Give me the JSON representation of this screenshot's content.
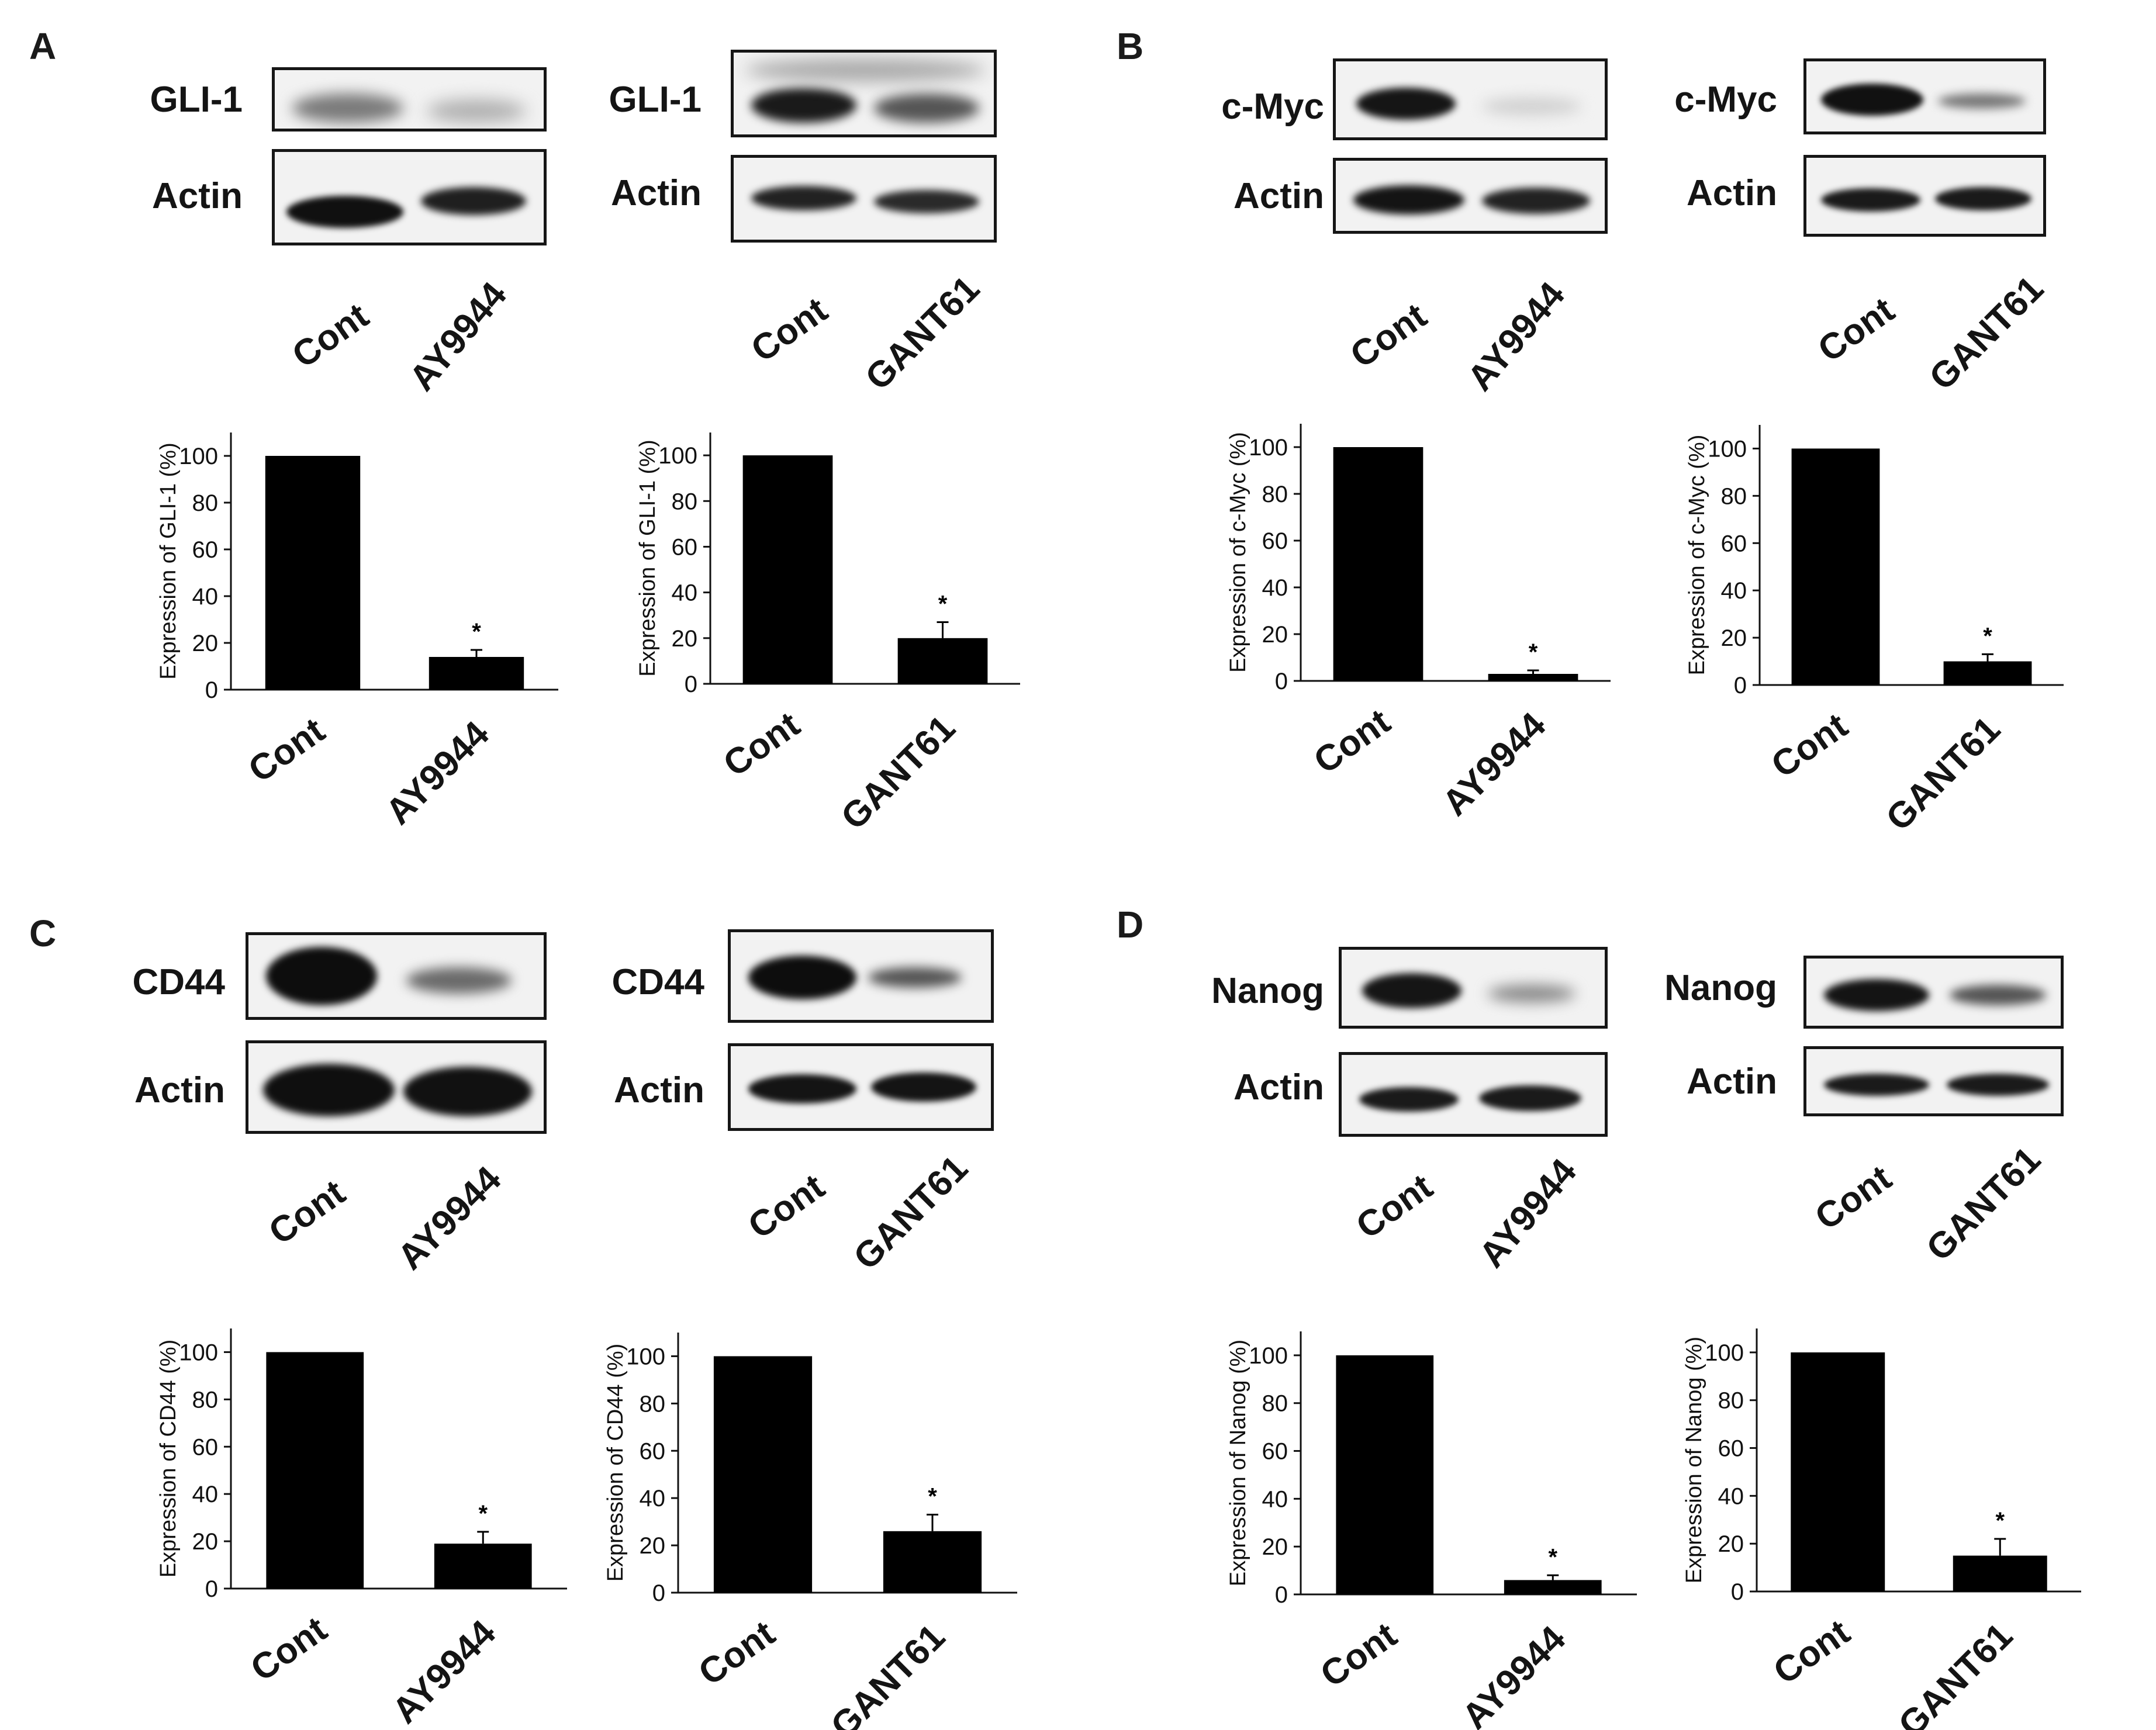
{
  "panels": [
    {
      "letter": "A",
      "target": "GLI-1",
      "control": "Actin",
      "comparisons": [
        {
          "cont_label": "Cont",
          "treat_label": "AY9944"
        },
        {
          "cont_label": "Cont",
          "treat_label": "GANT61"
        }
      ]
    },
    {
      "letter": "B",
      "target": "c-Myc",
      "control": "Actin",
      "comparisons": [
        {
          "cont_label": "Cont",
          "treat_label": "AY9944"
        },
        {
          "cont_label": "Cont",
          "treat_label": "GANT61"
        }
      ]
    },
    {
      "letter": "C",
      "target": "CD44",
      "control": "Actin",
      "comparisons": [
        {
          "cont_label": "Cont",
          "treat_label": "AY9944"
        },
        {
          "cont_label": "Cont",
          "treat_label": "GANT61"
        }
      ]
    },
    {
      "letter": "D",
      "target": "Nanog",
      "control": "Actin",
      "comparisons": [
        {
          "cont_label": "Cont",
          "treat_label": "AY9944"
        },
        {
          "cont_label": "Cont",
          "treat_label": "GANT61"
        }
      ]
    }
  ],
  "chart_data": [
    {
      "panel": "A",
      "type": "bar",
      "categories": [
        "Cont",
        "AY9944"
      ],
      "values": [
        100,
        14
      ],
      "errors": [
        0,
        3
      ],
      "significance": [
        "",
        "*"
      ],
      "ylabel": "Expression of GLI-1 (%)",
      "yticks": [
        0,
        20,
        40,
        60,
        80,
        100
      ],
      "ylim": [
        0,
        110
      ]
    },
    {
      "panel": "A",
      "type": "bar",
      "categories": [
        "Cont",
        "GANT61"
      ],
      "values": [
        100,
        20
      ],
      "errors": [
        0,
        7
      ],
      "significance": [
        "",
        "*"
      ],
      "ylabel": "Expression of GLI-1 (%)",
      "yticks": [
        0,
        20,
        40,
        60,
        80,
        100
      ],
      "ylim": [
        0,
        110
      ]
    },
    {
      "panel": "B",
      "type": "bar",
      "categories": [
        "Cont",
        "AY9944"
      ],
      "values": [
        100,
        3
      ],
      "errors": [
        0,
        1.5
      ],
      "significance": [
        "",
        "*"
      ],
      "ylabel": "Expression of c-Myc (%)",
      "yticks": [
        0,
        20,
        40,
        60,
        80,
        100
      ],
      "ylim": [
        0,
        110
      ]
    },
    {
      "panel": "B",
      "type": "bar",
      "categories": [
        "Cont",
        "GANT61"
      ],
      "values": [
        100,
        10
      ],
      "errors": [
        0,
        3
      ],
      "significance": [
        "",
        "*"
      ],
      "ylabel": "Expression of c-Myc (%)",
      "yticks": [
        0,
        20,
        40,
        60,
        80,
        100
      ],
      "ylim": [
        0,
        110
      ]
    },
    {
      "panel": "C",
      "type": "bar",
      "categories": [
        "Cont",
        "AY9944"
      ],
      "values": [
        100,
        19
      ],
      "errors": [
        0,
        5
      ],
      "significance": [
        "",
        "*"
      ],
      "ylabel": "Expression of CD44 (%)",
      "yticks": [
        0,
        20,
        40,
        60,
        80,
        100
      ],
      "ylim": [
        0,
        110
      ]
    },
    {
      "panel": "C",
      "type": "bar",
      "categories": [
        "Cont",
        "GANT61"
      ],
      "values": [
        100,
        26
      ],
      "errors": [
        0,
        7
      ],
      "significance": [
        "",
        "*"
      ],
      "ylabel": "Expression of CD44 (%)",
      "yticks": [
        0,
        20,
        40,
        60,
        80,
        100
      ],
      "ylim": [
        0,
        110
      ]
    },
    {
      "panel": "D",
      "type": "bar",
      "categories": [
        "Cont",
        "AY9944"
      ],
      "values": [
        100,
        6
      ],
      "errors": [
        0,
        2
      ],
      "significance": [
        "",
        "*"
      ],
      "ylabel": "Expression of Nanog (%)",
      "yticks": [
        0,
        20,
        40,
        60,
        80,
        100
      ],
      "ylim": [
        0,
        110
      ]
    },
    {
      "panel": "D",
      "type": "bar",
      "categories": [
        "Cont",
        "GANT61"
      ],
      "values": [
        100,
        15
      ],
      "errors": [
        0,
        7
      ],
      "significance": [
        "",
        "*"
      ],
      "ylabel": "Expression of Nanog (%)",
      "yticks": [
        0,
        20,
        40,
        60,
        80,
        100
      ],
      "ylim": [
        0,
        110
      ]
    }
  ]
}
